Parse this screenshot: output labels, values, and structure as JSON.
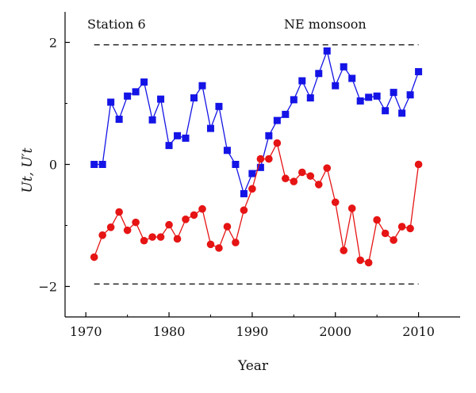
{
  "chart_data": {
    "type": "line",
    "title": "",
    "corner_labels": {
      "left": "Station 6",
      "right": "NE monsoon"
    },
    "xlabel": "Year",
    "ylabel": "Ut, U′t",
    "xlim": [
      1967.5,
      2015
    ],
    "ylim": [
      -2.5,
      2.5
    ],
    "xticks": [
      1970,
      1980,
      1990,
      2000,
      2010
    ],
    "xtick_labels": [
      "1970",
      "1980",
      "1990",
      "2000",
      "2010"
    ],
    "yticks": [
      -2,
      0,
      2
    ],
    "ytick_labels": [
      "−2",
      "0",
      "2"
    ],
    "grid": false,
    "reference_lines": [
      {
        "y": 1.96,
        "x_range": [
          1971,
          2010
        ],
        "style": "dashed"
      },
      {
        "y": -1.96,
        "x_range": [
          1971,
          2010
        ],
        "style": "dashed"
      }
    ],
    "x": [
      1971,
      1972,
      1973,
      1974,
      1975,
      1976,
      1977,
      1978,
      1979,
      1980,
      1981,
      1982,
      1983,
      1984,
      1985,
      1986,
      1987,
      1988,
      1989,
      1990,
      1991,
      1992,
      1993,
      1994,
      1995,
      1996,
      1997,
      1998,
      1999,
      2000,
      2001,
      2002,
      2003,
      2004,
      2005,
      2006,
      2007,
      2008,
      2009,
      2010
    ],
    "series": [
      {
        "marker": "square",
        "color": "#1414e6",
        "values": [
          0.0,
          0.0,
          1.02,
          0.74,
          1.12,
          1.19,
          1.35,
          0.73,
          1.07,
          0.31,
          0.47,
          0.43,
          1.09,
          1.29,
          0.59,
          0.95,
          0.23,
          0.0,
          -0.48,
          -0.15,
          -0.05,
          0.47,
          0.72,
          0.82,
          1.06,
          1.37,
          1.09,
          1.49,
          1.86,
          1.29,
          1.6,
          1.41,
          1.04,
          1.1,
          1.12,
          0.88,
          1.18,
          0.84,
          1.14,
          1.52
        ]
      },
      {
        "marker": "circle",
        "color": "#e61414",
        "values": [
          -1.52,
          -1.16,
          -1.03,
          -0.78,
          -1.08,
          -0.95,
          -1.25,
          -1.19,
          -1.19,
          -0.99,
          -1.22,
          -0.9,
          -0.83,
          -0.73,
          -1.31,
          -1.37,
          -1.02,
          -1.28,
          -0.75,
          -0.4,
          0.09,
          0.09,
          0.35,
          -0.23,
          -0.28,
          -0.13,
          -0.19,
          -0.33,
          -0.06,
          -0.62,
          -1.41,
          -0.72,
          -1.57,
          -1.61,
          -0.91,
          -1.13,
          -1.24,
          -1.02,
          -1.05,
          0.0
        ]
      }
    ]
  }
}
